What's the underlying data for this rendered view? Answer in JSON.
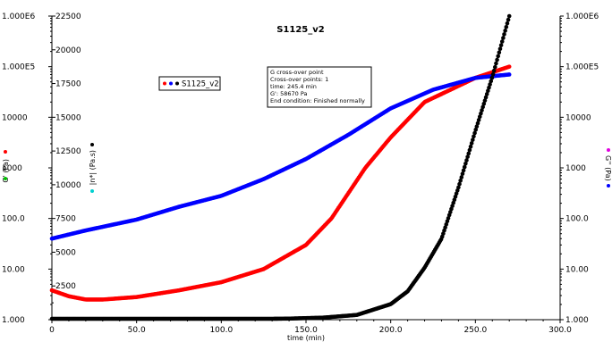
{
  "chart_data": {
    "type": "line",
    "title": "S1125_v2",
    "xlabel": "time (min)",
    "xlim": [
      0,
      300
    ],
    "x_ticks": [
      "0",
      "50.0",
      "100.0",
      "150.0",
      "200.0",
      "250.0",
      "300.0"
    ],
    "y_left_log_ticks": [
      "1.000",
      "10.00",
      "100.0",
      "1000",
      "10000",
      "1.000E5",
      "1.000E6"
    ],
    "y_left_linear_ticks": [
      "2500",
      "5000",
      "7500",
      "10000",
      "12500",
      "15000",
      "17500",
      "20000",
      "22500"
    ],
    "y_right_log_ticks": [
      "1.000",
      "10.00",
      "100.0",
      "1000",
      "10000",
      "1.000E5",
      "1.000E6"
    ],
    "y_left_label_outer": "G' (Pa)",
    "y_left_label_inner": "|n*| (Pa.s)",
    "y_right_label": "G'' (Pa)",
    "grid": false,
    "legend": {
      "placement": "top-left",
      "entry": "S1125_v2"
    },
    "annotation": {
      "lines": [
        "G cross-over point",
        "Cross-over points: 1",
        "time: 245.4 min",
        "G': 58670 Pa",
        "End condition: Finished normally"
      ]
    },
    "series": [
      {
        "axis": "log",
        "color": "#ff0000",
        "points": [
          [
            0,
            3.8
          ],
          [
            10,
            2.9
          ],
          [
            20,
            2.5
          ],
          [
            30,
            2.5
          ],
          [
            50,
            2.8
          ],
          [
            75,
            3.8
          ],
          [
            100,
            5.5
          ],
          [
            125,
            10
          ],
          [
            150,
            30
          ],
          [
            165,
            100
          ],
          [
            185,
            1000
          ],
          [
            200,
            4000
          ],
          [
            220,
            20000
          ],
          [
            250,
            60000
          ],
          [
            270,
            100000
          ]
        ]
      },
      {
        "axis": "log",
        "color": "#0000ff",
        "points": [
          [
            0,
            40
          ],
          [
            20,
            58
          ],
          [
            50,
            95
          ],
          [
            75,
            170
          ],
          [
            100,
            280
          ],
          [
            125,
            600
          ],
          [
            150,
            1500
          ],
          [
            175,
            4500
          ],
          [
            200,
            15000
          ],
          [
            225,
            35000
          ],
          [
            250,
            60000
          ],
          [
            270,
            70000
          ]
        ]
      },
      {
        "axis": "linear",
        "color": "#000000",
        "points": [
          [
            0,
            0
          ],
          [
            50,
            5
          ],
          [
            100,
            20
          ],
          [
            140,
            80
          ],
          [
            160,
            150
          ],
          [
            180,
            350
          ],
          [
            200,
            1150
          ],
          [
            210,
            2100
          ],
          [
            220,
            3850
          ],
          [
            230,
            6000
          ],
          [
            240,
            9800
          ],
          [
            250,
            14000
          ],
          [
            260,
            18000
          ],
          [
            270,
            22500
          ]
        ]
      }
    ]
  }
}
